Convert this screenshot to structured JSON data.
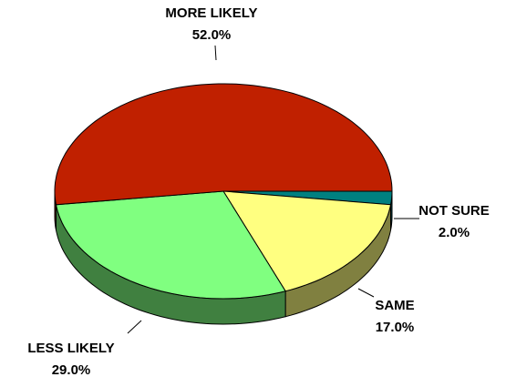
{
  "chart_data": {
    "type": "pie3d",
    "categories": [
      "NOT SURE",
      "SAME",
      "LESS LIKELY",
      "MORE LIKELY"
    ],
    "values": [
      2,
      17,
      29,
      52
    ],
    "value_labels": [
      "2.0%",
      "17.0%",
      "29.0%",
      "52.0%"
    ],
    "colors": [
      "#008080",
      "#ffff80",
      "#80ff80",
      "#c02000"
    ]
  }
}
